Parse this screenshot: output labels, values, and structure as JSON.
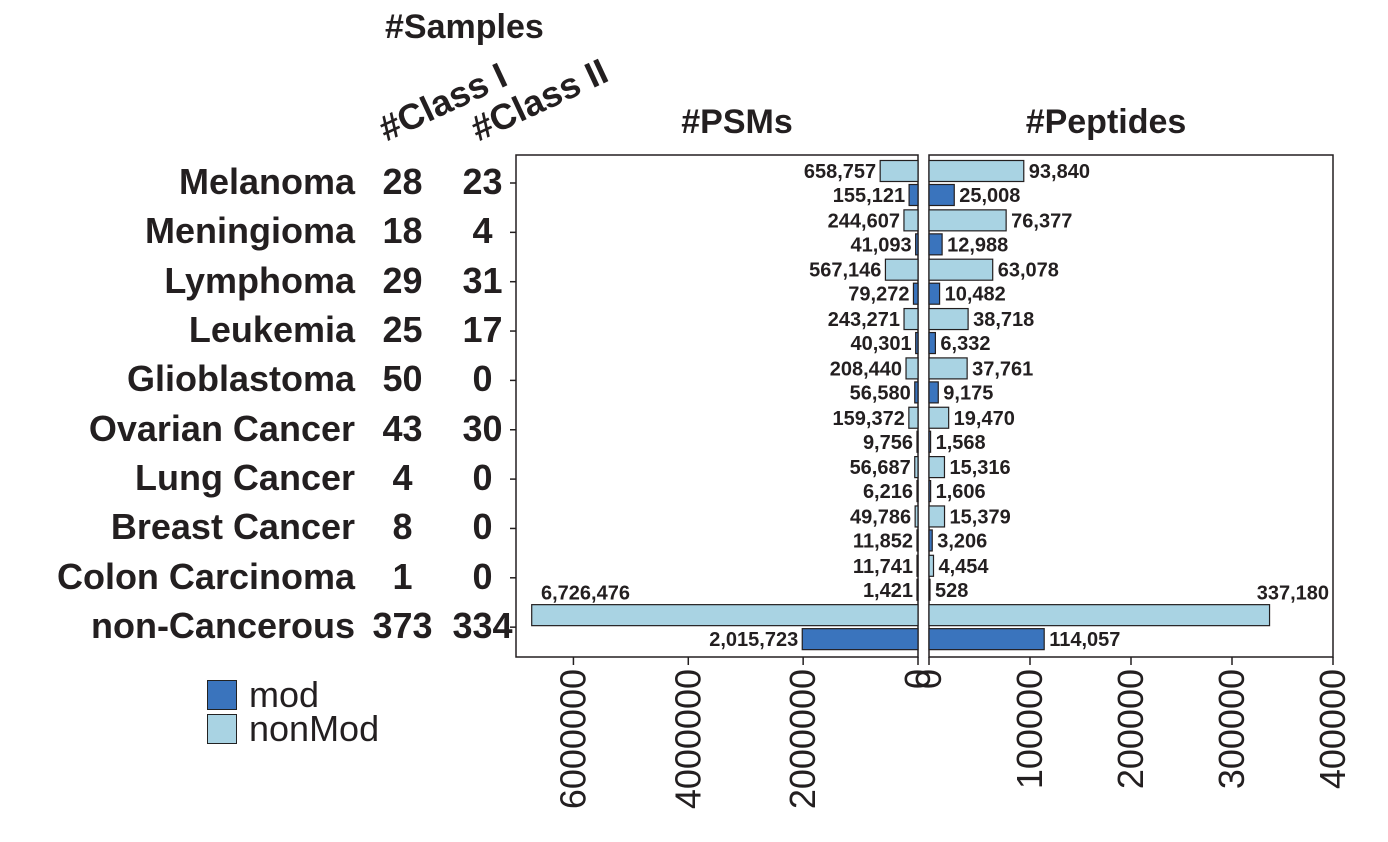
{
  "headers": {
    "samples": "#Samples",
    "class1": "#Class I",
    "class2": "#Class II",
    "psms": "#PSMs",
    "peptides": "#Peptides"
  },
  "legend": [
    {
      "label": "mod",
      "color": "#3a74bd"
    },
    {
      "label": "nonMod",
      "color": "#a9d3e3"
    }
  ],
  "chart_data": {
    "type": "bar",
    "orientation": "horizontal",
    "categories": [
      "Melanoma",
      "Meningioma",
      "Lymphoma",
      "Leukemia",
      "Glioblastoma",
      "Ovarian Cancer",
      "Lung Cancer",
      "Breast Cancer",
      "Colon Carcinoma",
      "non-Cancerous"
    ],
    "class1_samples": [
      28,
      18,
      29,
      25,
      50,
      43,
      4,
      8,
      1,
      373
    ],
    "class2_samples": [
      23,
      4,
      31,
      17,
      0,
      30,
      0,
      0,
      0,
      334
    ],
    "psms": {
      "title": "#PSMs",
      "xlim": [
        0,
        7000000
      ],
      "reversed": true,
      "ticks": [
        "6000000",
        "4000000",
        "2000000",
        "0"
      ],
      "series": [
        {
          "name": "nonMod",
          "color": "#a9d3e3",
          "values": [
            658757,
            244607,
            567146,
            243271,
            208440,
            159372,
            56687,
            49786,
            11741,
            6726476
          ],
          "labels": [
            "658,757",
            "244,607",
            "567,146",
            "243,271",
            "208,440",
            "159,372",
            "56,687",
            "49,786",
            "11,741",
            "6,726,476"
          ]
        },
        {
          "name": "mod",
          "color": "#3a74bd",
          "values": [
            155121,
            41093,
            79272,
            40301,
            56580,
            9756,
            6216,
            11852,
            1421,
            2015723
          ],
          "labels": [
            "155,121",
            "41,093",
            "79,272",
            "40,301",
            "56,580",
            "9,756",
            "6,216",
            "11,852",
            "1,421",
            "2,015,723"
          ]
        }
      ]
    },
    "peptides": {
      "title": "#Peptides",
      "xlim": [
        0,
        400000
      ],
      "ticks": [
        "0",
        "100000",
        "200000",
        "300000",
        "400000"
      ],
      "series": [
        {
          "name": "nonMod",
          "color": "#a9d3e3",
          "values": [
            93840,
            76377,
            63078,
            38718,
            37761,
            19470,
            15316,
            15379,
            4454,
            337180
          ],
          "labels": [
            "93,840",
            "76,377",
            "63,078",
            "38,718",
            "37,761",
            "19,470",
            "15,316",
            "15,379",
            "4,454",
            "337,180"
          ]
        },
        {
          "name": "mod",
          "color": "#3a74bd",
          "values": [
            25008,
            12988,
            10482,
            6332,
            9175,
            1568,
            1606,
            3206,
            528,
            114057
          ],
          "labels": [
            "25,008",
            "12,988",
            "10,482",
            "6,332",
            "9,175",
            "1,568",
            "1,606",
            "3,206",
            "528",
            "114,057"
          ]
        }
      ]
    }
  }
}
